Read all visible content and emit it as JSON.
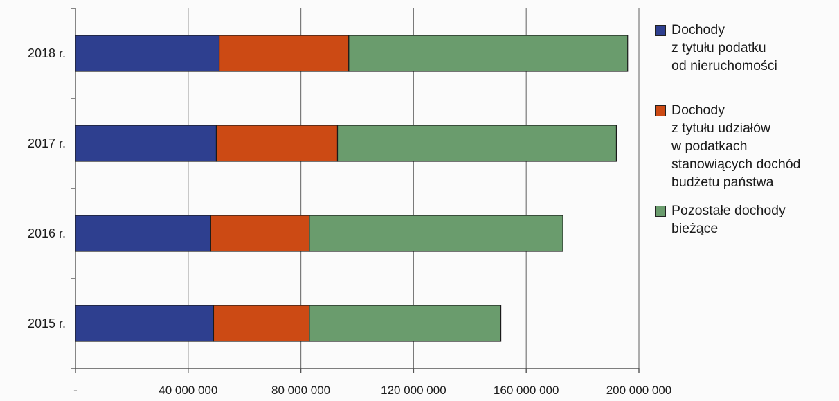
{
  "chart_data": {
    "type": "bar",
    "orientation": "horizontal",
    "stacked": true,
    "categories": [
      "2018 r.",
      "2017 r.",
      "2016 r.",
      "2015 r."
    ],
    "series": [
      {
        "name": "Dochody\nz tytułu podatku\nod nieruchomości",
        "color": "#2e3f8f",
        "values": [
          51000000,
          50000000,
          48000000,
          49000000
        ]
      },
      {
        "name": "Dochody\nz tytułu udziałów\nw podatkach\nstanowiących dochód\nbudżetu państwa",
        "color": "#cc4a14",
        "values": [
          46000000,
          43000000,
          35000000,
          34000000
        ]
      },
      {
        "name": "Pozostałe dochody\nbieżące",
        "color": "#6a9c6d",
        "values": [
          99000000,
          99000000,
          90000000,
          68000000
        ]
      }
    ],
    "xlim": [
      0,
      200000000
    ],
    "x_ticks": [
      "-",
      "40 000 000",
      "80 000 000",
      "120 000 000",
      "160 000 000",
      "200 000 000"
    ],
    "grid": "vertical",
    "legend_position": "right"
  }
}
